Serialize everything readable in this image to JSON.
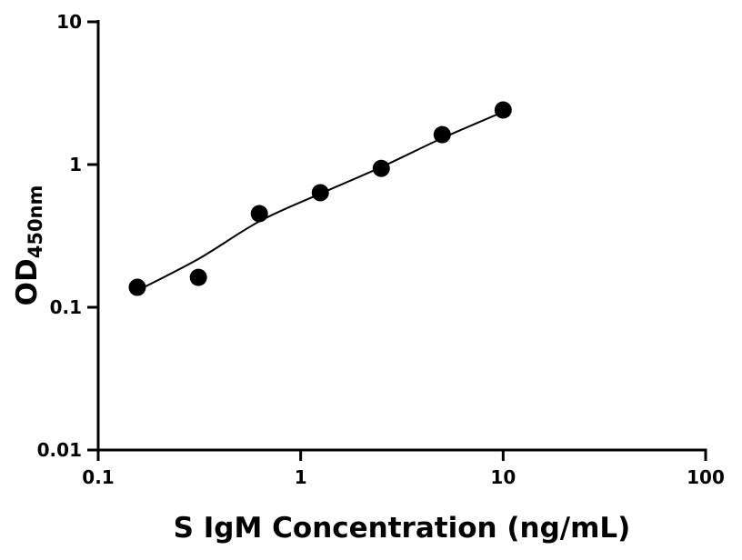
{
  "chart_data": {
    "type": "scatter",
    "title": "",
    "xlabel": "S IgM Concentration (ng/mL)",
    "ylabel_main": "OD",
    "ylabel_sub": "450nm",
    "x_scale": "log",
    "y_scale": "log",
    "xlim": [
      0.1,
      100
    ],
    "ylim": [
      0.01,
      10
    ],
    "x_ticks": [
      0.1,
      1,
      10,
      100
    ],
    "x_tick_labels": [
      "0.1",
      "1",
      "10",
      "100"
    ],
    "y_ticks": [
      0.01,
      0.1,
      1,
      10
    ],
    "y_tick_labels": [
      "0.01",
      "0.1",
      "1",
      "10"
    ],
    "grid": false,
    "legend": "none",
    "points": {
      "x": [
        0.156,
        0.3125,
        0.625,
        1.25,
        2.5,
        5,
        10
      ],
      "y": [
        0.138,
        0.162,
        0.453,
        0.635,
        0.94,
        1.62,
        2.41
      ]
    },
    "fit_curve": {
      "x": [
        0.148,
        0.3125,
        0.625,
        1.25,
        2.5,
        5,
        10
      ],
      "y": [
        0.126,
        0.218,
        0.4,
        0.625,
        0.96,
        1.53,
        2.34
      ]
    },
    "colors": {
      "marker": "#000000",
      "line": "#000000",
      "axis": "#000000"
    }
  }
}
